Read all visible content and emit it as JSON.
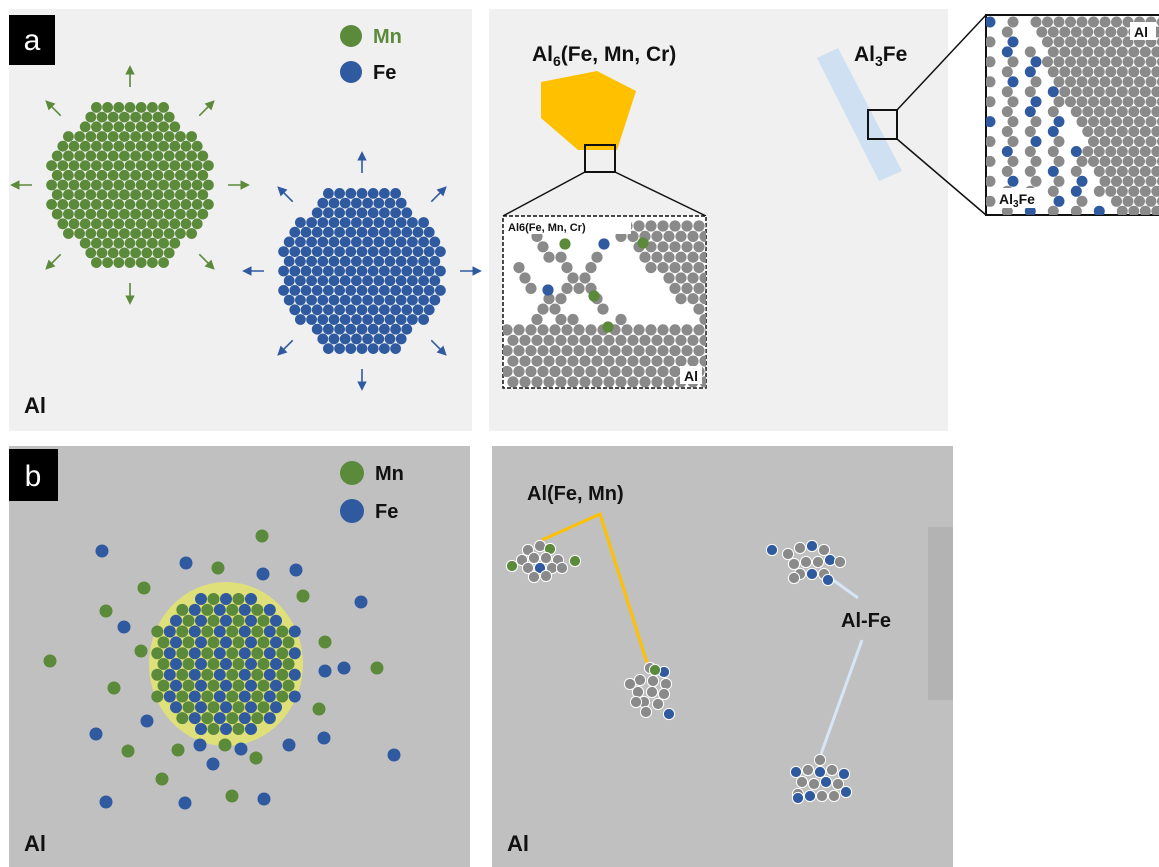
{
  "panel_a": {
    "tag": "a",
    "legend": {
      "mn_label": "Mn",
      "fe_label": "Fe"
    },
    "matrix_label": "Al",
    "phase1_title": {
      "base": "Al",
      "sub": "6",
      "rest": "(Fe,  Mn, Cr)"
    },
    "phase1_inset_label": "Al6(Fe, Mn, Cr)",
    "phase1_inset_al": "Al",
    "phase2_title": {
      "base": "Al",
      "sub": "3",
      "rest": "Fe"
    },
    "phase2_inset_al": "Al",
    "phase2_inset_label": {
      "base": "Al",
      "sub": "3",
      "rest": "Fe"
    }
  },
  "panel_b": {
    "tag": "b",
    "legend": {
      "mn_label": "Mn",
      "fe_label": "Fe"
    },
    "matrix_label": "Al",
    "cluster1_label": "Al(Fe, Mn)",
    "cluster2_label": "Al-Fe",
    "matrix_label_right": "Al"
  },
  "colors": {
    "mn": "#5a8a3a",
    "fe": "#2f5aa0",
    "al": "#8a8a8a",
    "phase1": "#ffc000",
    "phase2": "#cfe0f2",
    "halo": "#e0e07a",
    "panel_a_bg": "#f0f0f0",
    "panel_b_bg": "#c0c0c0"
  }
}
